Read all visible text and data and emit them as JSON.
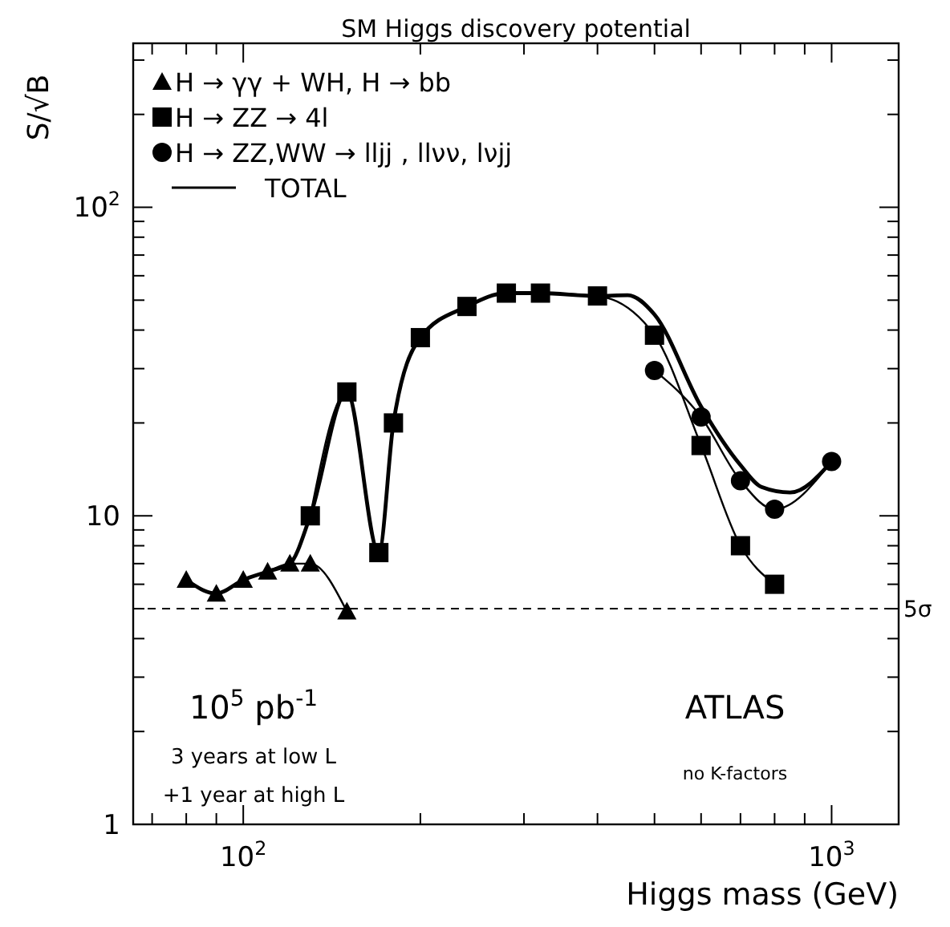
{
  "chart_data": {
    "type": "line",
    "title": "SM Higgs discovery potential",
    "xlabel": "Higgs mass (GeV)",
    "ylabel": "S/√B",
    "log": "xy",
    "grid": false,
    "legend": "top left",
    "xlim": [
      65,
      1300
    ],
    "ylim": [
      1,
      340
    ],
    "xticks": [
      {
        "value": 70,
        "label": null
      },
      {
        "value": 80,
        "label": null
      },
      {
        "value": 90,
        "label": null
      },
      {
        "value": 100,
        "label": "10$^{2}$"
      },
      {
        "value": 200,
        "label": null
      },
      {
        "value": 300,
        "label": null
      },
      {
        "value": 400,
        "label": null
      },
      {
        "value": 500,
        "label": null
      },
      {
        "value": 600,
        "label": null
      },
      {
        "value": 700,
        "label": null
      },
      {
        "value": 800,
        "label": null
      },
      {
        "value": 900,
        "label": null
      },
      {
        "value": 1000,
        "label": "10$^{3}$"
      }
    ],
    "yticks": [
      1,
      {
        "value": 2,
        "label": null
      },
      {
        "value": 3,
        "label": null
      },
      {
        "value": 4,
        "label": null
      },
      {
        "value": 5,
        "label": null
      },
      {
        "value": 6,
        "label": null
      },
      {
        "value": 7,
        "label": null
      },
      {
        "value": 8,
        "label": null
      },
      {
        "value": 9,
        "label": null
      },
      10,
      {
        "value": 20,
        "label": null
      },
      {
        "value": 30,
        "label": null
      },
      {
        "value": 40,
        "label": null
      },
      {
        "value": 50,
        "label": null
      },
      {
        "value": 60,
        "label": null
      },
      {
        "value": 70,
        "label": null
      },
      {
        "value": 80,
        "label": null
      },
      {
        "value": 90,
        "label": null
      },
      {
        "value": 100,
        "label": "10$^{2}$"
      },
      {
        "value": 200,
        "label": null
      },
      {
        "value": 300,
        "label": null
      }
    ],
    "series": [
      {
        "name": "H → γγ + WH, H → bb",
        "color": "#000000",
        "marker": "triangle",
        "x": [
          80,
          90,
          100,
          110,
          120,
          130,
          150
        ],
        "values": [
          6.2,
          5.6,
          6.2,
          6.6,
          7.0,
          7.0,
          4.9
        ]
      },
      {
        "name": "H → ZZ → 4l",
        "color": "#000000",
        "marker": "square",
        "x": [
          130,
          150,
          170,
          180,
          200,
          240,
          280,
          320,
          400,
          500,
          600,
          700,
          800
        ],
        "values": [
          10,
          25.2,
          7.6,
          20,
          37.8,
          47.7,
          52.7,
          52.7,
          51.6,
          38.5,
          16.9,
          8.0,
          6.0
        ]
      },
      {
        "name": "H → ZZ,WW → lljj , llνν, lνjj",
        "color": "#000000",
        "marker": "circle",
        "x": [
          500,
          600,
          700,
          800,
          1000
        ],
        "values": [
          29.6,
          20.9,
          13.0,
          10.5,
          15.0
        ]
      },
      {
        "name": "TOTAL",
        "color": "#000000",
        "marker": "none",
        "x": [
          80,
          90,
          100,
          110,
          120,
          130,
          150,
          170,
          180,
          200,
          240,
          280,
          320,
          400,
          450,
          500,
          600,
          700,
          760,
          850,
          1000
        ],
        "values": [
          6.2,
          5.6,
          6.2,
          6.6,
          7.0,
          10,
          25.2,
          7.6,
          20,
          37.8,
          47.7,
          52.7,
          52.7,
          51.6,
          51.9,
          44.9,
          22.6,
          14.6,
          12.4,
          11.9,
          15.0
        ]
      }
    ],
    "ref_lines": [
      {
        "axis": "y",
        "value": 5,
        "label": "5σ",
        "line_style": "dashed",
        "color": "#000000"
      }
    ],
    "annotations": [
      "10$^{5}$ pb$^{-1}$",
      "3 years at low L",
      "+1 year at high L",
      "ATLAS",
      "no K-factors"
    ]
  }
}
